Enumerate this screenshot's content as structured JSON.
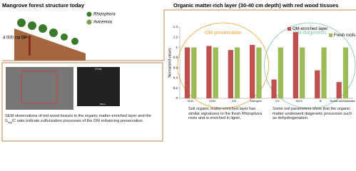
{
  "left_panel": {
    "title": "Mangrove forest structure today",
    "legend": [
      "Rhizophora",
      "Avicennia"
    ],
    "age_label": "4 000 cal BP",
    "image_labels": [
      "S Ka1",
      "20µm"
    ],
    "caption_parts": [
      "SEM observations of red wood tissues in the organic matter-enriched layer and the S",
      "org",
      "/C ratio indicate sulfurization processes of the OM enhancing preservation."
    ]
  },
  "right_panel": {
    "title": "Organic matter-rich layer (30-40 cm depth) with red wood tissues",
    "caption_left_parts": [
      "Soil organic matter-enriched layer has similar signatures to the fresh ",
      "Rhizophora",
      " roots and is enriched in lignin."
    ],
    "caption_right": "Some soil parameters show that the organic matter underwent diagenetic processes such as dehydrogenation."
  },
  "chart_data": {
    "type": "bar",
    "y_label": "Normalized values",
    "categories": [
      "δ13C",
      "δ15N",
      "C/N",
      "Total lignin",
      "C/V",
      "Ty/G2",
      "HI",
      "Neutral carbohydrates"
    ],
    "series": [
      {
        "name": "OM-enriched layer",
        "color": "#c0504d",
        "values": [
          1.0,
          1.03,
          0.95,
          1.05,
          0.37,
          1.3,
          0.55,
          0.32
        ]
      },
      {
        "name": "Fresh roots",
        "color": "#9bbb59",
        "values": [
          1,
          1,
          1,
          1,
          1,
          1,
          1,
          1
        ]
      }
    ],
    "ylim": [
      0,
      1.4
    ],
    "yticks": [
      0,
      0.2,
      0.4,
      0.6,
      0.8,
      1,
      1.2,
      1.4
    ],
    "grid": false,
    "legend": "top-right",
    "annotations": [
      {
        "text": "OM preservation",
        "color": "#f0a030"
      },
      {
        "text": "OM diagenesis",
        "color": "#7fc6b0"
      }
    ]
  }
}
